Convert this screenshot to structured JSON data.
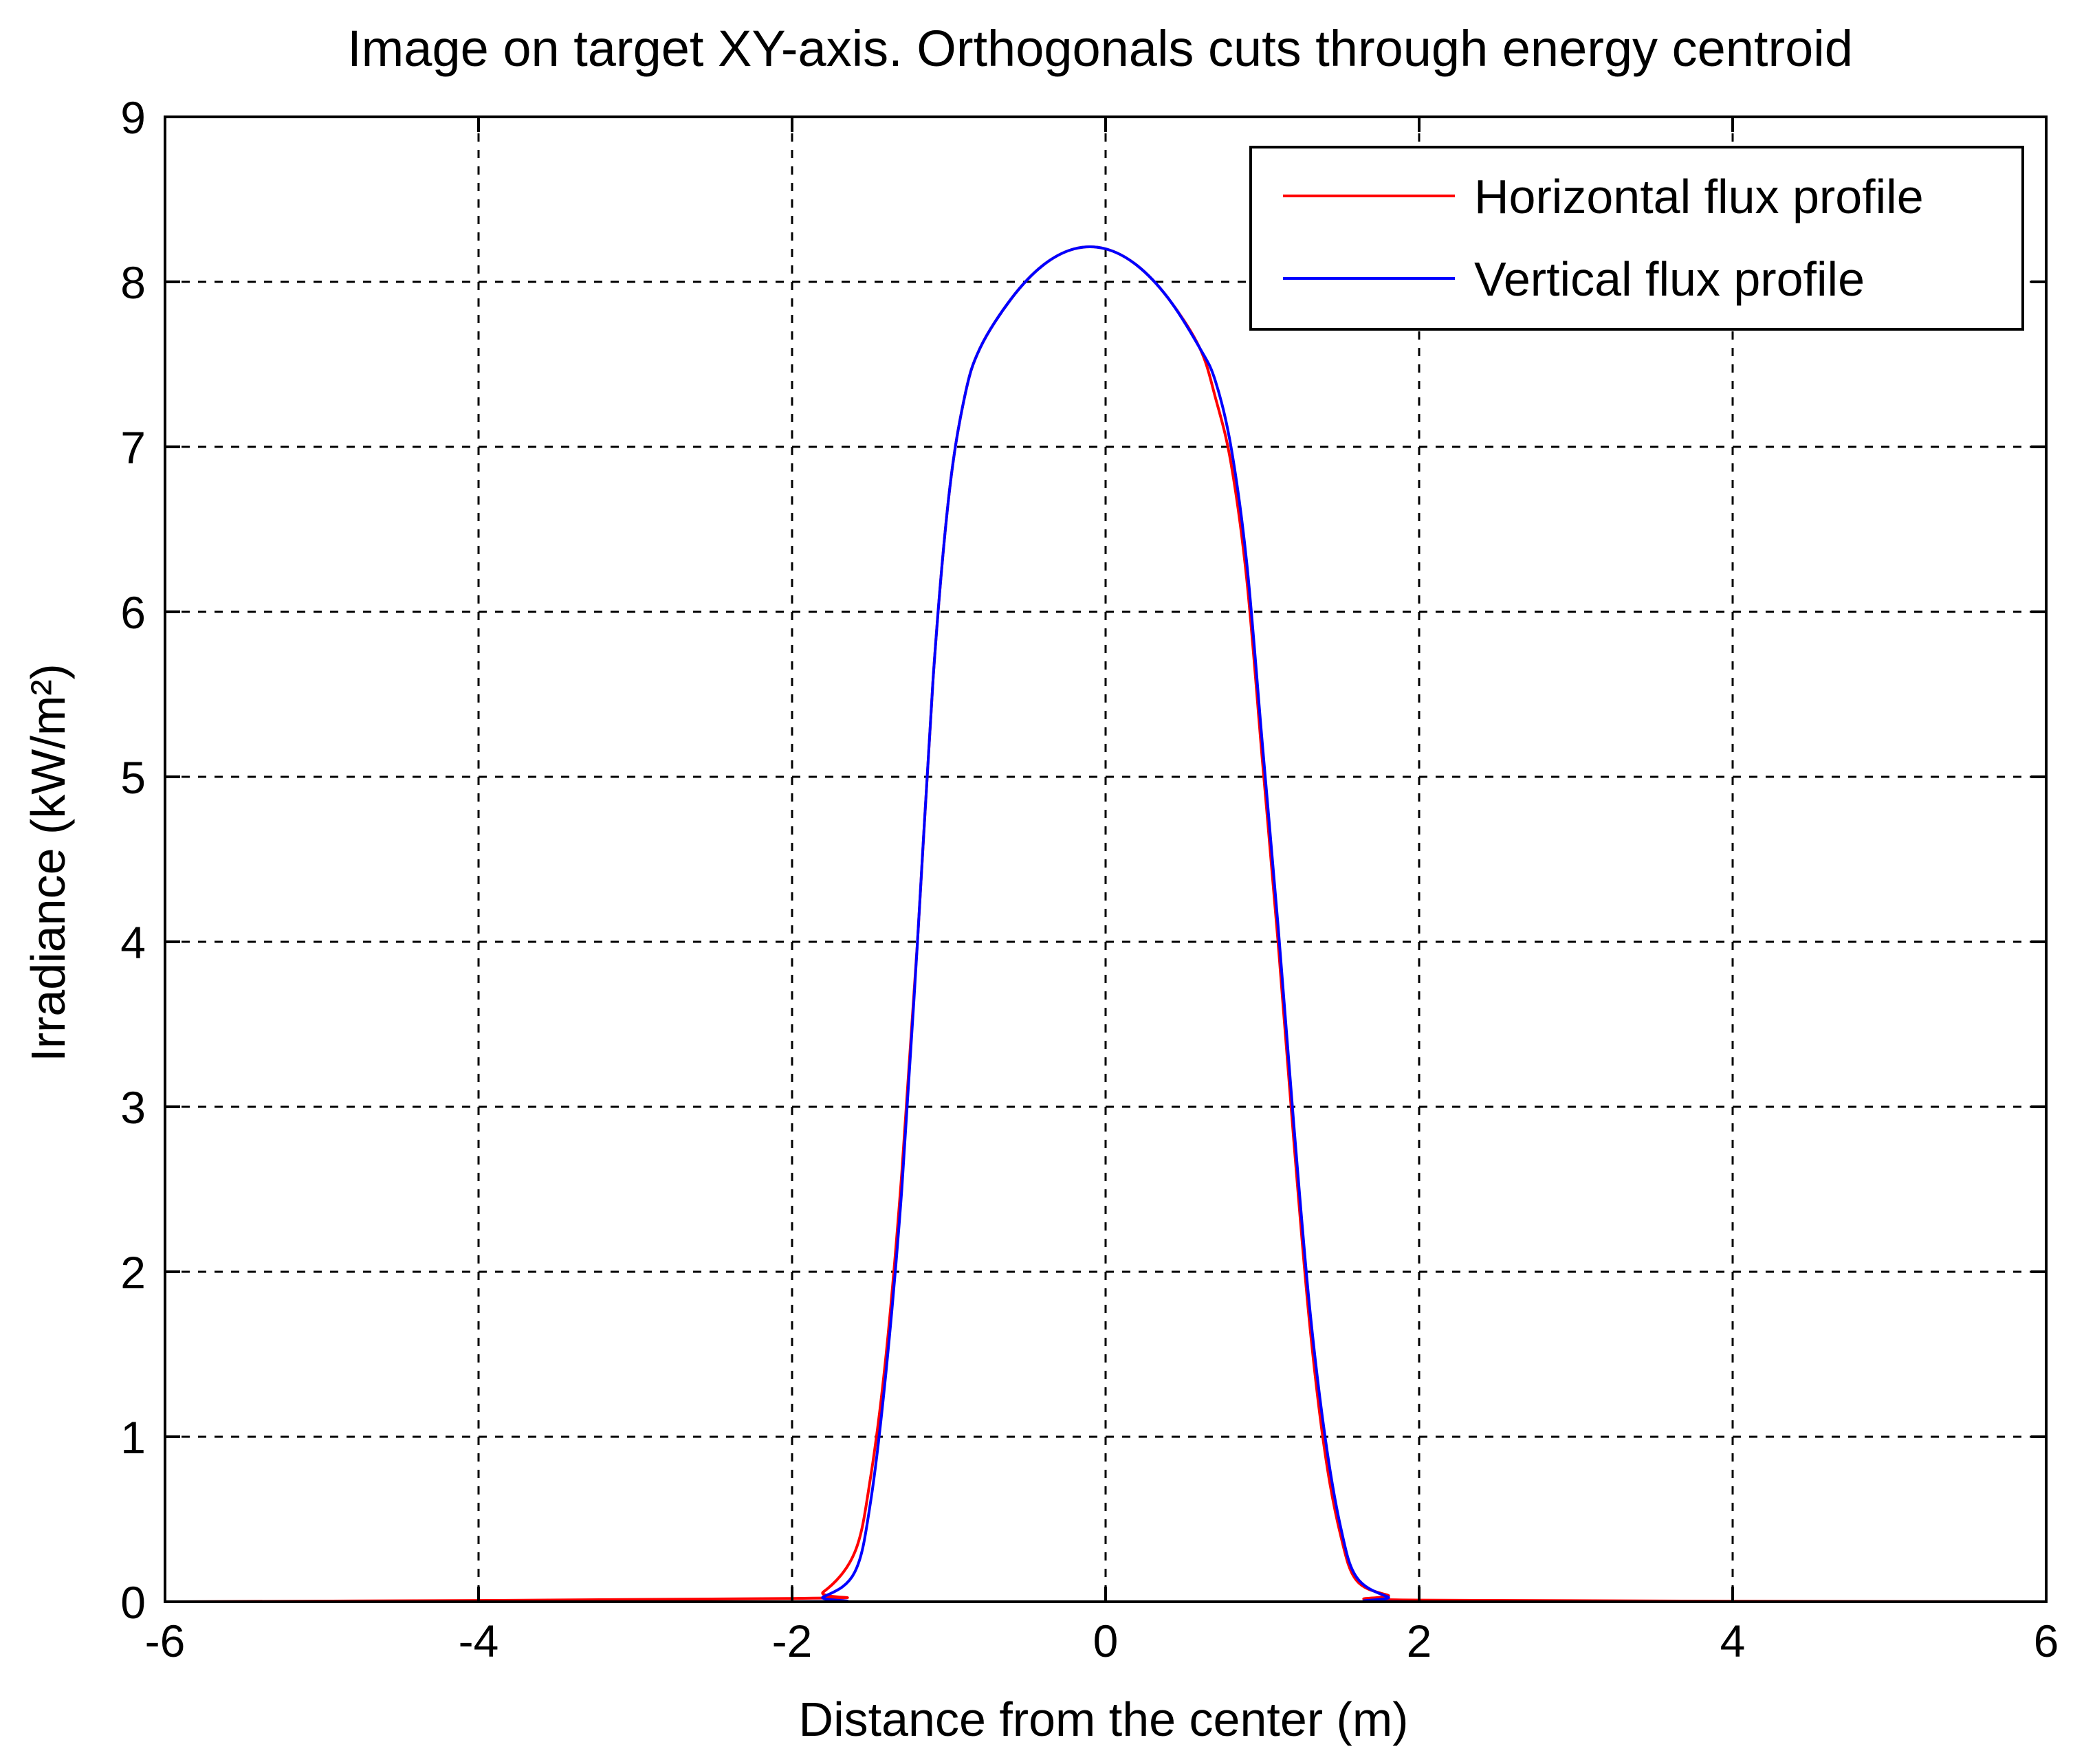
{
  "chart_data": {
    "type": "line",
    "title": "Image on target XY-axis. Orthogonals cuts through energy centroid",
    "xlabel": "Distance from the center (m)",
    "ylabel": "Irradiance (kW/m²)",
    "xlim": [
      -6,
      6
    ],
    "ylim": [
      0,
      9
    ],
    "xticks": [
      -6,
      -4,
      -2,
      0,
      2,
      4,
      6
    ],
    "xtick_labels": [
      "-6",
      "-4",
      "-2",
      "0",
      "2",
      "4",
      "6"
    ],
    "yticks": [
      0,
      1,
      2,
      3,
      4,
      5,
      6,
      7,
      8,
      9
    ],
    "ytick_labels": [
      "0",
      "1",
      "2",
      "3",
      "4",
      "5",
      "6",
      "7",
      "8",
      "9"
    ],
    "grid": true,
    "legend_position": "top-right",
    "series": [
      {
        "name": "Horizontal flux profile",
        "color": "#ff0000",
        "x": [
          -6,
          -2.0,
          -1.8,
          -1.6,
          -1.5,
          -1.4,
          -1.3,
          -1.2,
          -1.1,
          -1.0,
          -0.9,
          -0.8,
          -0.6,
          -0.4,
          -0.2,
          0.0,
          0.2,
          0.4,
          0.6,
          0.7,
          0.8,
          0.9,
          1.0,
          1.1,
          1.2,
          1.3,
          1.4,
          1.5,
          1.6,
          1.8,
          2.0,
          6
        ],
        "y": [
          0,
          0.02,
          0.06,
          0.3,
          0.75,
          1.5,
          2.6,
          4.0,
          5.6,
          6.7,
          7.3,
          7.6,
          7.9,
          8.1,
          8.2,
          8.2,
          8.1,
          7.9,
          7.6,
          7.3,
          6.9,
          6.2,
          5.1,
          4.0,
          2.8,
          1.7,
          0.9,
          0.4,
          0.13,
          0.04,
          0.01,
          0
        ]
      },
      {
        "name": "Vertical flux profile",
        "color": "#0000ff",
        "x": [
          -6,
          -2.0,
          -1.8,
          -1.6,
          -1.5,
          -1.4,
          -1.3,
          -1.2,
          -1.1,
          -1.0,
          -0.9,
          -0.8,
          -0.6,
          -0.4,
          -0.2,
          0.0,
          0.2,
          0.4,
          0.6,
          0.7,
          0.8,
          0.9,
          1.0,
          1.1,
          1.2,
          1.3,
          1.4,
          1.5,
          1.6,
          1.8,
          2.0,
          6
        ],
        "y": [
          0,
          0.0,
          0.03,
          0.18,
          0.6,
          1.4,
          2.5,
          4.0,
          5.6,
          6.7,
          7.3,
          7.6,
          7.9,
          8.1,
          8.2,
          8.2,
          8.1,
          7.9,
          7.6,
          7.4,
          7.0,
          6.3,
          5.2,
          4.1,
          2.9,
          1.8,
          1.0,
          0.45,
          0.15,
          0.03,
          0.0,
          0
        ]
      }
    ]
  }
}
